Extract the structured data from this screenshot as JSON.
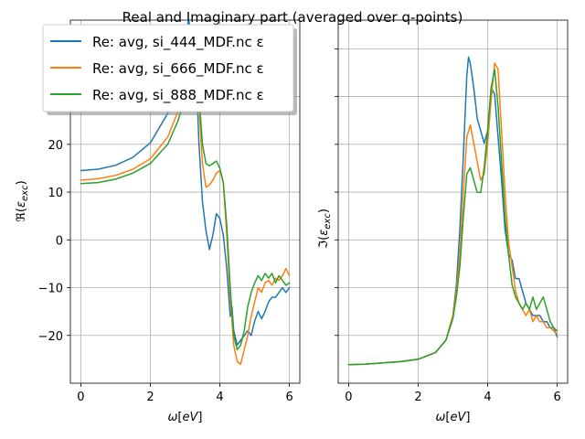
{
  "figure": {
    "suptitle": "Real and Imaginary part (averaged over q-points)"
  },
  "colors": {
    "si_444": "#1f77b4",
    "si_666": "#ff7f0e",
    "si_888": "#2ca02c",
    "grid": "#b0b0b0"
  },
  "legend": {
    "placement": "upper-left, overlapping left subplot",
    "entries": [
      "Re: avg, si_444_MDF.nc ε",
      "Re: avg, si_666_MDF.nc ε",
      "Re: avg, si_888_MDF.nc ε"
    ]
  },
  "chart_data": [
    {
      "type": "line",
      "subplot": "real-part",
      "xlabel": "ω[eV]",
      "ylabel": "ℜ(ε_exc)",
      "xlim": [
        -0.3,
        6.3
      ],
      "ylim": [
        -30,
        46
      ],
      "xticks": [
        0,
        2,
        4,
        6
      ],
      "yticks": [
        -20,
        -10,
        0,
        10,
        20,
        30
      ],
      "grid": true,
      "series": [
        {
          "name": "Re: avg, si_444_MDF.nc ε",
          "color": "#1f77b4",
          "x": [
            0,
            0.5,
            1.0,
            1.5,
            2.0,
            2.5,
            2.8,
            3.0,
            3.1,
            3.2,
            3.3,
            3.4,
            3.5,
            3.6,
            3.7,
            3.8,
            3.9,
            4.0,
            4.1,
            4.2,
            4.3,
            4.35,
            4.4,
            4.5,
            4.6,
            4.7,
            4.8,
            4.9,
            5.0,
            5.1,
            5.2,
            5.3,
            5.4,
            5.5,
            5.6,
            5.7,
            5.8,
            5.9,
            6.0
          ],
          "y": [
            14.5,
            14.8,
            15.6,
            17.3,
            20.3,
            26.5,
            34,
            42,
            46,
            43,
            38,
            20,
            8,
            2,
            -2,
            1,
            5.5,
            4.5,
            1,
            -6,
            -16,
            -14,
            -19,
            -22,
            -21,
            -20,
            -19,
            -20,
            -17,
            -15,
            -16.5,
            -15,
            -13,
            -12,
            -12,
            -11,
            -10,
            -11,
            -10
          ]
        },
        {
          "name": "Re: avg, si_666_MDF.nc ε",
          "color": "#ff7f0e",
          "x": [
            0,
            0.5,
            1.0,
            1.5,
            2.0,
            2.5,
            2.8,
            3.0,
            3.1,
            3.2,
            3.3,
            3.4,
            3.5,
            3.6,
            3.7,
            3.8,
            3.9,
            4.0,
            4.1,
            4.2,
            4.3,
            4.4,
            4.5,
            4.6,
            4.7,
            4.8,
            4.9,
            5.0,
            5.1,
            5.2,
            5.3,
            5.4,
            5.5,
            5.6,
            5.7,
            5.8,
            5.9,
            6.0
          ],
          "y": [
            12.5,
            12.8,
            13.5,
            14.8,
            17.0,
            21.5,
            27,
            33,
            37,
            40,
            38,
            28,
            16,
            11,
            11.5,
            12.5,
            14,
            14.5,
            12,
            1,
            -12,
            -22,
            -25.5,
            -26,
            -23,
            -20,
            -16,
            -13,
            -10,
            -11,
            -9,
            -8.5,
            -9.5,
            -8,
            -8.5,
            -7.5,
            -6,
            -7.5
          ]
        },
        {
          "name": "Re: avg, si_888_MDF.nc ε",
          "color": "#2ca02c",
          "x": [
            0,
            0.5,
            1.0,
            1.5,
            2.0,
            2.5,
            2.8,
            3.0,
            3.1,
            3.2,
            3.3,
            3.4,
            3.5,
            3.6,
            3.7,
            3.8,
            3.9,
            4.0,
            4.1,
            4.2,
            4.3,
            4.4,
            4.5,
            4.6,
            4.7,
            4.8,
            4.9,
            5.0,
            5.1,
            5.2,
            5.3,
            5.4,
            5.5,
            5.6,
            5.7,
            5.8,
            5.9,
            6.0
          ],
          "y": [
            11.8,
            12.0,
            12.7,
            14.0,
            16.0,
            20.0,
            25,
            30,
            33,
            36,
            37,
            30,
            20,
            16,
            15.5,
            16,
            16.5,
            15,
            12,
            3,
            -10,
            -20,
            -23,
            -22,
            -19,
            -14,
            -11,
            -9,
            -7.5,
            -8.5,
            -7,
            -8,
            -7,
            -9,
            -7.5,
            -8.5,
            -9.5,
            -9
          ]
        }
      ]
    },
    {
      "type": "line",
      "subplot": "imaginary-part",
      "xlabel": "ω[eV]",
      "ylabel": "ℑ(ε_exc)",
      "xlim": [
        -0.3,
        6.3
      ],
      "ylim": [
        -3,
        56
      ],
      "xticks": [
        0,
        2,
        4,
        6
      ],
      "yticks": [],
      "grid": true,
      "series": [
        {
          "name": "si_444",
          "color": "#1f77b4",
          "x": [
            0,
            0.5,
            1.0,
            1.5,
            2.0,
            2.5,
            2.8,
            3.0,
            3.1,
            3.2,
            3.3,
            3.4,
            3.45,
            3.5,
            3.6,
            3.7,
            3.8,
            3.9,
            4.0,
            4.1,
            4.2,
            4.3,
            4.4,
            4.5,
            4.6,
            4.7,
            4.8,
            4.9,
            5.0,
            5.1,
            5.2,
            5.3,
            5.4,
            5.5,
            5.6,
            5.7,
            5.8,
            5.9,
            6.0
          ],
          "y": [
            0,
            0.1,
            0.3,
            0.5,
            0.9,
            2.0,
            4.0,
            8,
            13,
            22,
            34,
            47,
            50,
            49,
            45,
            40,
            38,
            36,
            38,
            45,
            44,
            37,
            30,
            22,
            18,
            17,
            14,
            14,
            12,
            10,
            9,
            8,
            8,
            8,
            7,
            7,
            6,
            6,
            4.5
          ]
        },
        {
          "name": "si_666",
          "color": "#ff7f0e",
          "x": [
            0,
            0.5,
            1.0,
            1.5,
            2.0,
            2.5,
            2.8,
            3.0,
            3.1,
            3.2,
            3.3,
            3.4,
            3.5,
            3.6,
            3.7,
            3.8,
            3.9,
            4.0,
            4.1,
            4.2,
            4.3,
            4.4,
            4.5,
            4.6,
            4.7,
            4.8,
            4.9,
            5.0,
            5.1,
            5.2,
            5.3,
            5.4,
            5.5,
            5.6,
            5.7,
            5.8,
            5.9,
            6.0
          ],
          "y": [
            0,
            0.1,
            0.3,
            0.5,
            0.9,
            2.0,
            4.0,
            8,
            12,
            18,
            28,
            37,
            39,
            36,
            33,
            30,
            31,
            36,
            43,
            49,
            48,
            38,
            28,
            20,
            16,
            12,
            10,
            9,
            8,
            9,
            7,
            8,
            7,
            7,
            6,
            6,
            5.5,
            5
          ]
        },
        {
          "name": "si_888",
          "color": "#2ca02c",
          "x": [
            0,
            0.5,
            1.0,
            1.5,
            2.0,
            2.5,
            2.8,
            3.0,
            3.1,
            3.2,
            3.3,
            3.4,
            3.5,
            3.6,
            3.7,
            3.8,
            3.9,
            4.0,
            4.1,
            4.2,
            4.3,
            4.4,
            4.5,
            4.6,
            4.7,
            4.8,
            4.9,
            5.0,
            5.1,
            5.2,
            5.3,
            5.4,
            5.5,
            5.6,
            5.7,
            5.8,
            5.9,
            6.0
          ],
          "y": [
            0,
            0.1,
            0.3,
            0.5,
            0.9,
            2.0,
            4.0,
            7.5,
            11,
            16,
            24,
            31,
            32,
            30,
            28,
            28,
            32,
            38,
            45,
            48,
            42,
            33,
            24,
            18,
            13,
            11,
            10,
            9,
            10,
            9,
            11,
            9,
            10,
            11,
            9,
            7,
            6,
            5.5
          ]
        }
      ]
    }
  ]
}
